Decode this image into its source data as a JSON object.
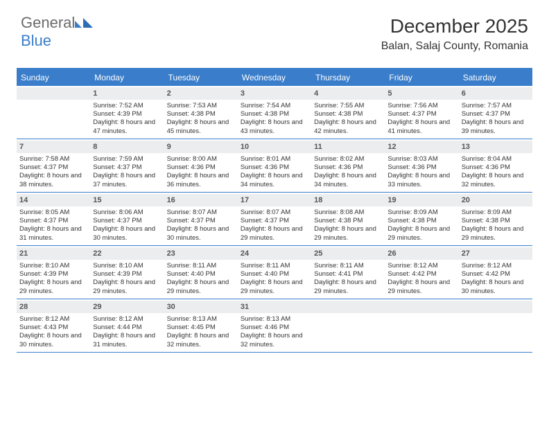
{
  "brand": {
    "part1": "General",
    "part2": "Blue"
  },
  "title": "December 2025",
  "location": "Balan, Salaj County, Romania",
  "weekdays": [
    "Sunday",
    "Monday",
    "Tuesday",
    "Wednesday",
    "Thursday",
    "Friday",
    "Saturday"
  ],
  "colors": {
    "accent": "#3a7dca",
    "headerBg": "#3a7dca",
    "dayNumBg": "#ecedee"
  },
  "weeks": [
    [
      {
        "num": "",
        "sr": "",
        "ss": "",
        "dl": ""
      },
      {
        "num": "1",
        "sr": "Sunrise: 7:52 AM",
        "ss": "Sunset: 4:39 PM",
        "dl": "Daylight: 8 hours and 47 minutes."
      },
      {
        "num": "2",
        "sr": "Sunrise: 7:53 AM",
        "ss": "Sunset: 4:38 PM",
        "dl": "Daylight: 8 hours and 45 minutes."
      },
      {
        "num": "3",
        "sr": "Sunrise: 7:54 AM",
        "ss": "Sunset: 4:38 PM",
        "dl": "Daylight: 8 hours and 43 minutes."
      },
      {
        "num": "4",
        "sr": "Sunrise: 7:55 AM",
        "ss": "Sunset: 4:38 PM",
        "dl": "Daylight: 8 hours and 42 minutes."
      },
      {
        "num": "5",
        "sr": "Sunrise: 7:56 AM",
        "ss": "Sunset: 4:37 PM",
        "dl": "Daylight: 8 hours and 41 minutes."
      },
      {
        "num": "6",
        "sr": "Sunrise: 7:57 AM",
        "ss": "Sunset: 4:37 PM",
        "dl": "Daylight: 8 hours and 39 minutes."
      }
    ],
    [
      {
        "num": "7",
        "sr": "Sunrise: 7:58 AM",
        "ss": "Sunset: 4:37 PM",
        "dl": "Daylight: 8 hours and 38 minutes."
      },
      {
        "num": "8",
        "sr": "Sunrise: 7:59 AM",
        "ss": "Sunset: 4:37 PM",
        "dl": "Daylight: 8 hours and 37 minutes."
      },
      {
        "num": "9",
        "sr": "Sunrise: 8:00 AM",
        "ss": "Sunset: 4:36 PM",
        "dl": "Daylight: 8 hours and 36 minutes."
      },
      {
        "num": "10",
        "sr": "Sunrise: 8:01 AM",
        "ss": "Sunset: 4:36 PM",
        "dl": "Daylight: 8 hours and 34 minutes."
      },
      {
        "num": "11",
        "sr": "Sunrise: 8:02 AM",
        "ss": "Sunset: 4:36 PM",
        "dl": "Daylight: 8 hours and 34 minutes."
      },
      {
        "num": "12",
        "sr": "Sunrise: 8:03 AM",
        "ss": "Sunset: 4:36 PM",
        "dl": "Daylight: 8 hours and 33 minutes."
      },
      {
        "num": "13",
        "sr": "Sunrise: 8:04 AM",
        "ss": "Sunset: 4:36 PM",
        "dl": "Daylight: 8 hours and 32 minutes."
      }
    ],
    [
      {
        "num": "14",
        "sr": "Sunrise: 8:05 AM",
        "ss": "Sunset: 4:37 PM",
        "dl": "Daylight: 8 hours and 31 minutes."
      },
      {
        "num": "15",
        "sr": "Sunrise: 8:06 AM",
        "ss": "Sunset: 4:37 PM",
        "dl": "Daylight: 8 hours and 30 minutes."
      },
      {
        "num": "16",
        "sr": "Sunrise: 8:07 AM",
        "ss": "Sunset: 4:37 PM",
        "dl": "Daylight: 8 hours and 30 minutes."
      },
      {
        "num": "17",
        "sr": "Sunrise: 8:07 AM",
        "ss": "Sunset: 4:37 PM",
        "dl": "Daylight: 8 hours and 29 minutes."
      },
      {
        "num": "18",
        "sr": "Sunrise: 8:08 AM",
        "ss": "Sunset: 4:38 PM",
        "dl": "Daylight: 8 hours and 29 minutes."
      },
      {
        "num": "19",
        "sr": "Sunrise: 8:09 AM",
        "ss": "Sunset: 4:38 PM",
        "dl": "Daylight: 8 hours and 29 minutes."
      },
      {
        "num": "20",
        "sr": "Sunrise: 8:09 AM",
        "ss": "Sunset: 4:38 PM",
        "dl": "Daylight: 8 hours and 29 minutes."
      }
    ],
    [
      {
        "num": "21",
        "sr": "Sunrise: 8:10 AM",
        "ss": "Sunset: 4:39 PM",
        "dl": "Daylight: 8 hours and 29 minutes."
      },
      {
        "num": "22",
        "sr": "Sunrise: 8:10 AM",
        "ss": "Sunset: 4:39 PM",
        "dl": "Daylight: 8 hours and 29 minutes."
      },
      {
        "num": "23",
        "sr": "Sunrise: 8:11 AM",
        "ss": "Sunset: 4:40 PM",
        "dl": "Daylight: 8 hours and 29 minutes."
      },
      {
        "num": "24",
        "sr": "Sunrise: 8:11 AM",
        "ss": "Sunset: 4:40 PM",
        "dl": "Daylight: 8 hours and 29 minutes."
      },
      {
        "num": "25",
        "sr": "Sunrise: 8:11 AM",
        "ss": "Sunset: 4:41 PM",
        "dl": "Daylight: 8 hours and 29 minutes."
      },
      {
        "num": "26",
        "sr": "Sunrise: 8:12 AM",
        "ss": "Sunset: 4:42 PM",
        "dl": "Daylight: 8 hours and 29 minutes."
      },
      {
        "num": "27",
        "sr": "Sunrise: 8:12 AM",
        "ss": "Sunset: 4:42 PM",
        "dl": "Daylight: 8 hours and 30 minutes."
      }
    ],
    [
      {
        "num": "28",
        "sr": "Sunrise: 8:12 AM",
        "ss": "Sunset: 4:43 PM",
        "dl": "Daylight: 8 hours and 30 minutes."
      },
      {
        "num": "29",
        "sr": "Sunrise: 8:12 AM",
        "ss": "Sunset: 4:44 PM",
        "dl": "Daylight: 8 hours and 31 minutes."
      },
      {
        "num": "30",
        "sr": "Sunrise: 8:13 AM",
        "ss": "Sunset: 4:45 PM",
        "dl": "Daylight: 8 hours and 32 minutes."
      },
      {
        "num": "31",
        "sr": "Sunrise: 8:13 AM",
        "ss": "Sunset: 4:46 PM",
        "dl": "Daylight: 8 hours and 32 minutes."
      },
      {
        "num": "",
        "sr": "",
        "ss": "",
        "dl": ""
      },
      {
        "num": "",
        "sr": "",
        "ss": "",
        "dl": ""
      },
      {
        "num": "",
        "sr": "",
        "ss": "",
        "dl": ""
      }
    ]
  ]
}
